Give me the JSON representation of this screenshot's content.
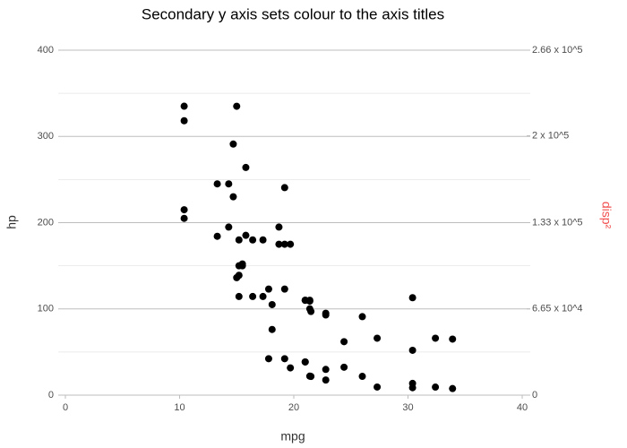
{
  "chart_data": {
    "type": "scatter",
    "title": "Secondary y axis sets colour to the axis titles",
    "x_label": "mpg",
    "y_label": "hp",
    "y2_label": "disp²",
    "y2_label_color": "#f24d4d",
    "xlim": [
      0,
      40
    ],
    "xticks": [
      0,
      10,
      20,
      30,
      40
    ],
    "ylim": [
      0,
      400
    ],
    "yticks": [
      0,
      100,
      200,
      300,
      400
    ],
    "minor_yticks": [
      50,
      150,
      250,
      350
    ],
    "y2lim": [
      0,
      266000
    ],
    "y2ticks": [
      0,
      {
        "value": 66500,
        "label": "6.65 x 10^4"
      },
      {
        "value": 133000,
        "label": "1.33 x 10^5"
      },
      {
        "value": 200000,
        "label": "2 x 10^5"
      },
      {
        "value": 266000,
        "label": "2.66 x 10^5"
      }
    ],
    "grid": true,
    "x": [
      21,
      21,
      22.8,
      21.4,
      18.7,
      18.1,
      14.3,
      24.4,
      22.8,
      19.2,
      17.8,
      16.4,
      17.3,
      15.2,
      10.4,
      10.4,
      14.7,
      32.4,
      30.4,
      33.9,
      21.5,
      15.5,
      15.2,
      13.3,
      19.2,
      27.3,
      26,
      30.4,
      15.8,
      19.7,
      15,
      21.4
    ],
    "series": [
      {
        "color": "#000000",
        "values": [
          110,
          110,
          93,
          110,
          175,
          105,
          245,
          62,
          95,
          123,
          123,
          180,
          180,
          180,
          205,
          215,
          230,
          66,
          52,
          65,
          97,
          150,
          150,
          245,
          175,
          66,
          91,
          113,
          264,
          175,
          335,
          109
        ]
      },
      {
        "color": "#000000",
        "axis": "y2",
        "values": [
          25600,
          25600,
          11664,
          66564,
          129600,
          50625,
          129600,
          21520.89,
          19824.64,
          28089.76,
          28089.76,
          76065.64,
          76065.64,
          76065.64,
          222784,
          211600,
          193600,
          6193.69,
          5730.49,
          5055.21,
          14424.01,
          101124,
          92416,
          122500,
          160000,
          6241,
          14472.09,
          9044.01,
          123201,
          21025,
          90601,
          14641
        ]
      }
    ]
  }
}
